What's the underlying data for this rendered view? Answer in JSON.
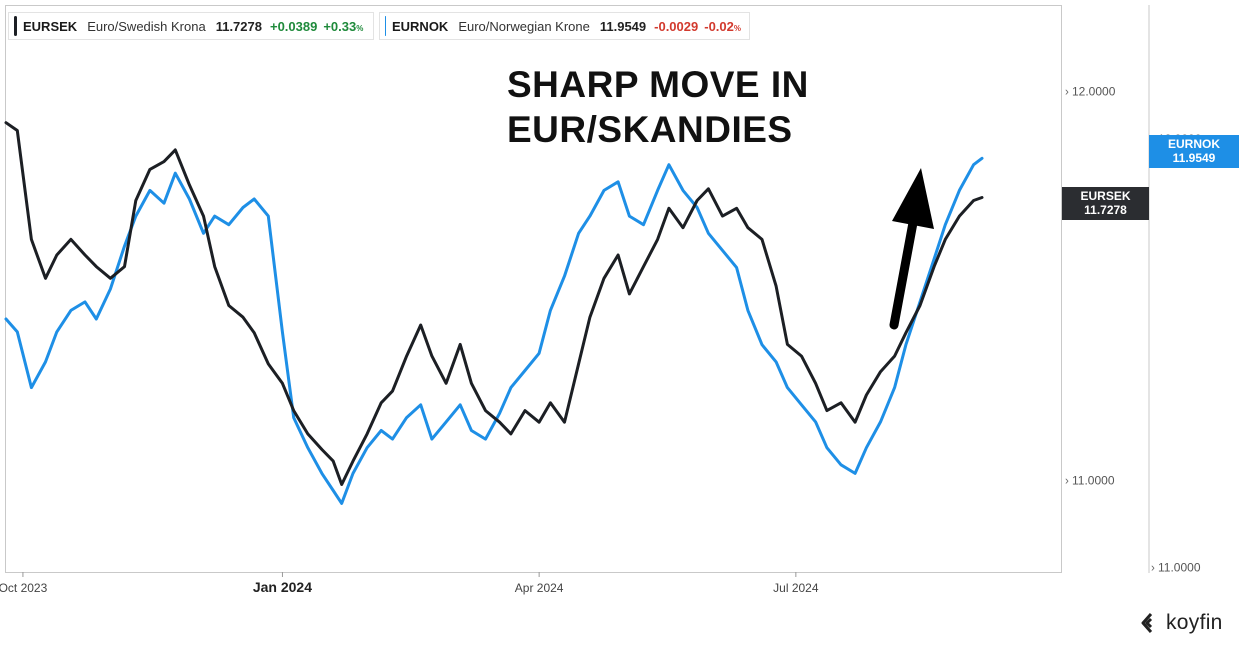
{
  "legend": [
    {
      "symbol": "EURSEK",
      "name": "Euro/Swedish Krona",
      "last": "11.7278",
      "change": "+0.0389",
      "change_pct": "+0.33",
      "pct_unit": "%",
      "direction": "up",
      "color": "#1c1f24"
    },
    {
      "symbol": "EURNOK",
      "name": "Euro/Norwegian Krone",
      "last": "11.9549",
      "change": "-0.0029",
      "change_pct": "-0.02",
      "pct_unit": "%",
      "direction": "down",
      "color": "#1e8fe6"
    }
  ],
  "annotation": {
    "line1": "SHARP MOVE IN",
    "line2": "EUR/SKANDIES"
  },
  "tags": {
    "eurnok": {
      "symbol": "EURNOK",
      "value": "11.9549",
      "color": "#1e8fe6"
    },
    "eursek": {
      "symbol": "EURSEK",
      "value": "11.7278",
      "color": "#1c1f24"
    }
  },
  "brand": {
    "name": "koyfin"
  },
  "chart_data": {
    "type": "line",
    "title": "",
    "x_tick_labels": [
      {
        "label": "Oct 2023",
        "date": "2023-10-01",
        "bold": false
      },
      {
        "label": "Jan 2024",
        "date": "2024-01-01",
        "bold": true
      },
      {
        "label": "Apr 2024",
        "date": "2024-04-01",
        "bold": false
      },
      {
        "label": "Jul 2024",
        "date": "2024-07-01",
        "bold": false
      }
    ],
    "x_range": [
      "2023-09-25",
      "2024-10-03"
    ],
    "axes": {
      "left_series": "EURSEK",
      "right_series": "EURNOK",
      "left_ticks": [
        "12.0000",
        "11.0000"
      ],
      "left_range": [
        10.765,
        12.22
      ],
      "right_ticks": [
        "12.0000",
        "11.0000"
      ],
      "right_range": [
        10.99,
        12.31
      ]
    },
    "series": [
      {
        "name": "EURSEK",
        "color": "#1c1f24",
        "points": [
          [
            "2023-09-25",
            11.92
          ],
          [
            "2023-09-29",
            11.9
          ],
          [
            "2023-10-04",
            11.62
          ],
          [
            "2023-10-09",
            11.52
          ],
          [
            "2023-10-13",
            11.58
          ],
          [
            "2023-10-18",
            11.62
          ],
          [
            "2023-10-23",
            11.58
          ],
          [
            "2023-10-27",
            11.55
          ],
          [
            "2023-11-01",
            11.52
          ],
          [
            "2023-11-06",
            11.55
          ],
          [
            "2023-11-10",
            11.72
          ],
          [
            "2023-11-15",
            11.8
          ],
          [
            "2023-11-20",
            11.82
          ],
          [
            "2023-11-24",
            11.85
          ],
          [
            "2023-11-29",
            11.76
          ],
          [
            "2023-12-04",
            11.68
          ],
          [
            "2023-12-08",
            11.55
          ],
          [
            "2023-12-13",
            11.45
          ],
          [
            "2023-12-18",
            11.42
          ],
          [
            "2023-12-22",
            11.38
          ],
          [
            "2023-12-27",
            11.3
          ],
          [
            "2024-01-01",
            11.25
          ],
          [
            "2024-01-05",
            11.18
          ],
          [
            "2024-01-10",
            11.12
          ],
          [
            "2024-01-15",
            11.08
          ],
          [
            "2024-01-19",
            11.05
          ],
          [
            "2024-01-22",
            10.99
          ],
          [
            "2024-01-26",
            11.05
          ],
          [
            "2024-01-31",
            11.12
          ],
          [
            "2024-02-05",
            11.2
          ],
          [
            "2024-02-09",
            11.23
          ],
          [
            "2024-02-14",
            11.32
          ],
          [
            "2024-02-19",
            11.4
          ],
          [
            "2024-02-23",
            11.32
          ],
          [
            "2024-02-28",
            11.25
          ],
          [
            "2024-03-04",
            11.35
          ],
          [
            "2024-03-08",
            11.25
          ],
          [
            "2024-03-13",
            11.18
          ],
          [
            "2024-03-18",
            11.15
          ],
          [
            "2024-03-22",
            11.12
          ],
          [
            "2024-03-27",
            11.18
          ],
          [
            "2024-04-01",
            11.15
          ],
          [
            "2024-04-05",
            11.2
          ],
          [
            "2024-04-10",
            11.15
          ],
          [
            "2024-04-15",
            11.3
          ],
          [
            "2024-04-19",
            11.42
          ],
          [
            "2024-04-24",
            11.52
          ],
          [
            "2024-04-29",
            11.58
          ],
          [
            "2024-05-03",
            11.48
          ],
          [
            "2024-05-08",
            11.55
          ],
          [
            "2024-05-13",
            11.62
          ],
          [
            "2024-05-17",
            11.7
          ],
          [
            "2024-05-22",
            11.65
          ],
          [
            "2024-05-27",
            11.72
          ],
          [
            "2024-05-31",
            11.75
          ],
          [
            "2024-06-05",
            11.68
          ],
          [
            "2024-06-10",
            11.7
          ],
          [
            "2024-06-14",
            11.65
          ],
          [
            "2024-06-19",
            11.62
          ],
          [
            "2024-06-24",
            11.5
          ],
          [
            "2024-06-28",
            11.35
          ],
          [
            "2024-07-03",
            11.32
          ],
          [
            "2024-07-08",
            11.25
          ],
          [
            "2024-07-12",
            11.18
          ],
          [
            "2024-07-17",
            11.2
          ],
          [
            "2024-07-22",
            11.15
          ],
          [
            "2024-07-26",
            11.22
          ],
          [
            "2024-07-31",
            11.28
          ],
          [
            "2024-08-05",
            11.32
          ],
          [
            "2024-08-09",
            11.38
          ],
          [
            "2024-08-14",
            11.45
          ],
          [
            "2024-08-19",
            11.55
          ],
          [
            "2024-08-23",
            11.62
          ],
          [
            "2024-08-28",
            11.68
          ],
          [
            "2024-09-02",
            11.72
          ],
          [
            "2024-09-05",
            11.7278
          ]
        ]
      },
      {
        "name": "EURNOK",
        "color": "#1e8fe6",
        "points": [
          [
            "2023-09-25",
            11.58
          ],
          [
            "2023-09-29",
            11.55
          ],
          [
            "2023-10-04",
            11.42
          ],
          [
            "2023-10-09",
            11.48
          ],
          [
            "2023-10-13",
            11.55
          ],
          [
            "2023-10-18",
            11.6
          ],
          [
            "2023-10-23",
            11.62
          ],
          [
            "2023-10-27",
            11.58
          ],
          [
            "2023-11-01",
            11.65
          ],
          [
            "2023-11-06",
            11.75
          ],
          [
            "2023-11-10",
            11.82
          ],
          [
            "2023-11-15",
            11.88
          ],
          [
            "2023-11-20",
            11.85
          ],
          [
            "2023-11-24",
            11.92
          ],
          [
            "2023-11-29",
            11.86
          ],
          [
            "2023-12-04",
            11.78
          ],
          [
            "2023-12-08",
            11.82
          ],
          [
            "2023-12-13",
            11.8
          ],
          [
            "2023-12-18",
            11.84
          ],
          [
            "2023-12-22",
            11.86
          ],
          [
            "2023-12-27",
            11.82
          ],
          [
            "2024-01-01",
            11.55
          ],
          [
            "2024-01-05",
            11.35
          ],
          [
            "2024-01-10",
            11.28
          ],
          [
            "2024-01-15",
            11.22
          ],
          [
            "2024-01-19",
            11.18
          ],
          [
            "2024-01-22",
            11.15
          ],
          [
            "2024-01-26",
            11.22
          ],
          [
            "2024-01-31",
            11.28
          ],
          [
            "2024-02-05",
            11.32
          ],
          [
            "2024-02-09",
            11.3
          ],
          [
            "2024-02-14",
            11.35
          ],
          [
            "2024-02-19",
            11.38
          ],
          [
            "2024-02-23",
            11.3
          ],
          [
            "2024-02-28",
            11.34
          ],
          [
            "2024-03-04",
            11.38
          ],
          [
            "2024-03-08",
            11.32
          ],
          [
            "2024-03-13",
            11.3
          ],
          [
            "2024-03-18",
            11.36
          ],
          [
            "2024-03-22",
            11.42
          ],
          [
            "2024-03-27",
            11.46
          ],
          [
            "2024-04-01",
            11.5
          ],
          [
            "2024-04-05",
            11.6
          ],
          [
            "2024-04-10",
            11.68
          ],
          [
            "2024-04-15",
            11.78
          ],
          [
            "2024-04-19",
            11.82
          ],
          [
            "2024-04-24",
            11.88
          ],
          [
            "2024-04-29",
            11.9
          ],
          [
            "2024-05-03",
            11.82
          ],
          [
            "2024-05-08",
            11.8
          ],
          [
            "2024-05-13",
            11.88
          ],
          [
            "2024-05-17",
            11.94
          ],
          [
            "2024-05-22",
            11.88
          ],
          [
            "2024-05-27",
            11.84
          ],
          [
            "2024-05-31",
            11.78
          ],
          [
            "2024-06-05",
            11.74
          ],
          [
            "2024-06-10",
            11.7
          ],
          [
            "2024-06-14",
            11.6
          ],
          [
            "2024-06-19",
            11.52
          ],
          [
            "2024-06-24",
            11.48
          ],
          [
            "2024-06-28",
            11.42
          ],
          [
            "2024-07-03",
            11.38
          ],
          [
            "2024-07-08",
            11.34
          ],
          [
            "2024-07-12",
            11.28
          ],
          [
            "2024-07-17",
            11.24
          ],
          [
            "2024-07-22",
            11.22
          ],
          [
            "2024-07-26",
            11.28
          ],
          [
            "2024-07-31",
            11.34
          ],
          [
            "2024-08-05",
            11.42
          ],
          [
            "2024-08-09",
            11.52
          ],
          [
            "2024-08-14",
            11.62
          ],
          [
            "2024-08-19",
            11.72
          ],
          [
            "2024-08-23",
            11.8
          ],
          [
            "2024-08-28",
            11.88
          ],
          [
            "2024-09-02",
            11.94
          ],
          [
            "2024-09-05",
            11.9549
          ]
        ]
      }
    ]
  }
}
